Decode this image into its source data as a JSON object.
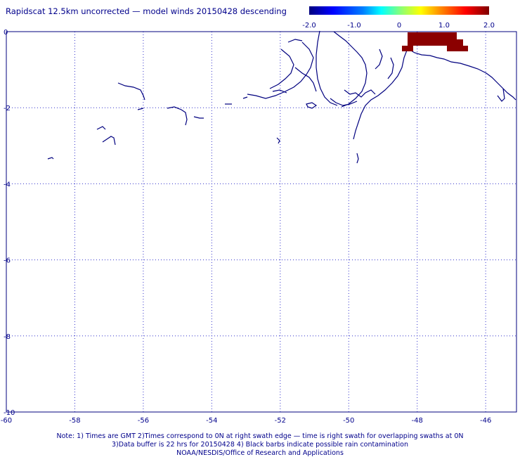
{
  "title": "Rapidscat 12.5km uncorrected — model winds 20150428 descending",
  "colorbar": {
    "labels": [
      "-2.0",
      "-1.0",
      "0",
      "1.0",
      "2.0"
    ],
    "min": -2.0,
    "max": 2.0
  },
  "axes": {
    "x_ticks": [
      "-60",
      "-58",
      "-56",
      "-54",
      "-52",
      "-50",
      "-48",
      "-46"
    ],
    "y_ticks": [
      "0",
      "-2",
      "-4",
      "-6",
      "-8",
      "-10"
    ],
    "xlim": [
      -60,
      -45.1
    ],
    "ylim": [
      -10,
      0
    ]
  },
  "anomaly_block_value": 2.0,
  "notes": [
    "Note: 1) Times are GMT 2)Times correspond to 0N at right swath edge — time is right swath for overlapping swaths at 0N",
    "3)Data buffer is 22 hrs for 20150428 4) Black barbs indicate possible rain contamination",
    "NOAA/NESDIS/Office of Research and Applications"
  ],
  "colors": {
    "frame": "#00007f",
    "grid": "#3333cc",
    "coast": "#00007f",
    "block": "#8b0000"
  }
}
